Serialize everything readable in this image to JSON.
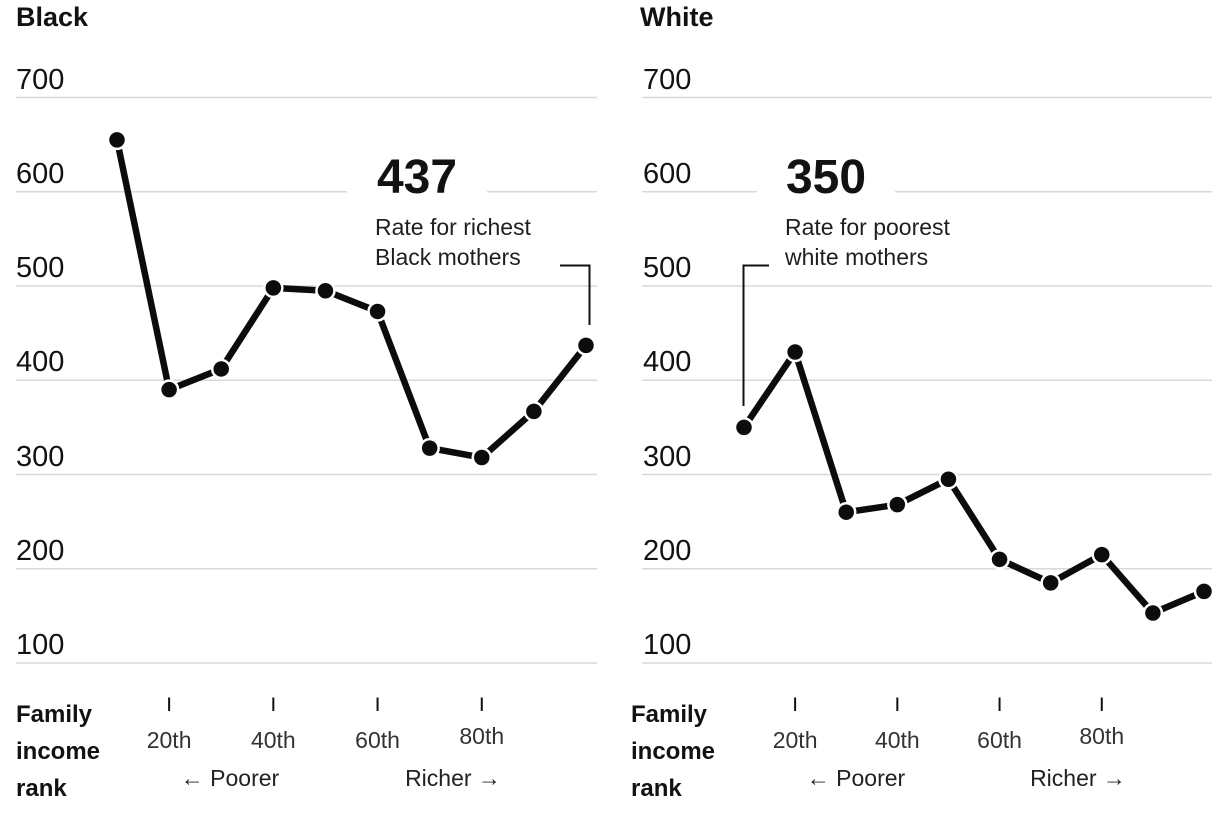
{
  "colors": {
    "background": "#ffffff",
    "line": "#0c0c0c",
    "point_fill": "#0c0c0c",
    "point_halo": "#ffffff",
    "gridline": "#d8d8d8",
    "axis_text": "#121212",
    "tick_text": "#333333",
    "annotation_text": "#1f1f1f"
  },
  "chart_data": [
    {
      "type": "line",
      "title": "Black",
      "x_points_income_percentile": [
        10,
        20,
        30,
        40,
        50,
        60,
        70,
        80,
        90,
        100
      ],
      "values": [
        655,
        390,
        412,
        498,
        495,
        473,
        328,
        318,
        367,
        437
      ],
      "y_tick_labels": [
        700,
        600,
        500,
        400,
        300,
        200,
        100
      ],
      "ylim": [
        100,
        700
      ],
      "grid": "horizontal",
      "legend": "none",
      "x_tick_labels": [
        "20th",
        "40th",
        "60th",
        "80th"
      ],
      "x_axis_title_lines": [
        "Family",
        "income",
        "rank"
      ],
      "direction_left": "← Poorer",
      "direction_right": "Richer →",
      "annotation": {
        "value": "437",
        "lines": [
          "Rate for richest",
          "Black mothers"
        ]
      }
    },
    {
      "type": "line",
      "title": "White",
      "x_points_income_percentile": [
        10,
        20,
        30,
        40,
        50,
        60,
        70,
        80,
        90,
        100
      ],
      "values": [
        350,
        430,
        260,
        268,
        295,
        210,
        185,
        215,
        153,
        176
      ],
      "y_tick_labels": [
        700,
        600,
        500,
        400,
        300,
        200,
        100
      ],
      "ylim": [
        100,
        700
      ],
      "grid": "horizontal",
      "legend": "none",
      "x_tick_labels": [
        "20th",
        "40th",
        "60th",
        "80th"
      ],
      "x_axis_title_lines": [
        "Family",
        "income",
        "rank"
      ],
      "direction_left": "← Poorer",
      "direction_right": "Richer →",
      "annotation": {
        "value": "350",
        "lines": [
          "Rate for poorest",
          "white mothers"
        ]
      }
    }
  ]
}
